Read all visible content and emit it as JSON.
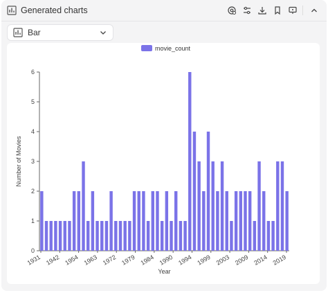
{
  "header": {
    "title": "Generated charts"
  },
  "toolbar": {
    "buttons": [
      "chart-settings-icon",
      "sliders-icon",
      "download-icon",
      "bookmark-icon",
      "present-icon",
      "chevron-up-icon"
    ]
  },
  "select": {
    "value": "Bar"
  },
  "colors": {
    "bar": "#7b73e8",
    "axis": "#666666"
  },
  "chart_data": {
    "type": "bar",
    "title": "",
    "xlabel": "Year",
    "ylabel": "Number of Movies",
    "ylim": [
      0,
      6
    ],
    "yticks": [
      0,
      1,
      2,
      3,
      4,
      5,
      6
    ],
    "legend": {
      "position": "top-center",
      "entries": [
        "movie_count"
      ]
    },
    "grid": false,
    "x_tick_labels": [
      "1931",
      "1942",
      "1954",
      "1963",
      "1972",
      "1979",
      "1984",
      "1990",
      "1994",
      "1999",
      "2003",
      "2009",
      "2014",
      "2019"
    ],
    "series": [
      {
        "name": "movie_count",
        "values": [
          2,
          1,
          1,
          1,
          1,
          1,
          1,
          2,
          2,
          3,
          1,
          2,
          1,
          1,
          1,
          2,
          1,
          1,
          1,
          1,
          2,
          2,
          2,
          1,
          2,
          2,
          1,
          2,
          1,
          2,
          1,
          1,
          6,
          4,
          3,
          2,
          4,
          3,
          2,
          3,
          2,
          1,
          2,
          2,
          2,
          2,
          1,
          3,
          2,
          1,
          1,
          3,
          3,
          2
        ]
      }
    ]
  }
}
